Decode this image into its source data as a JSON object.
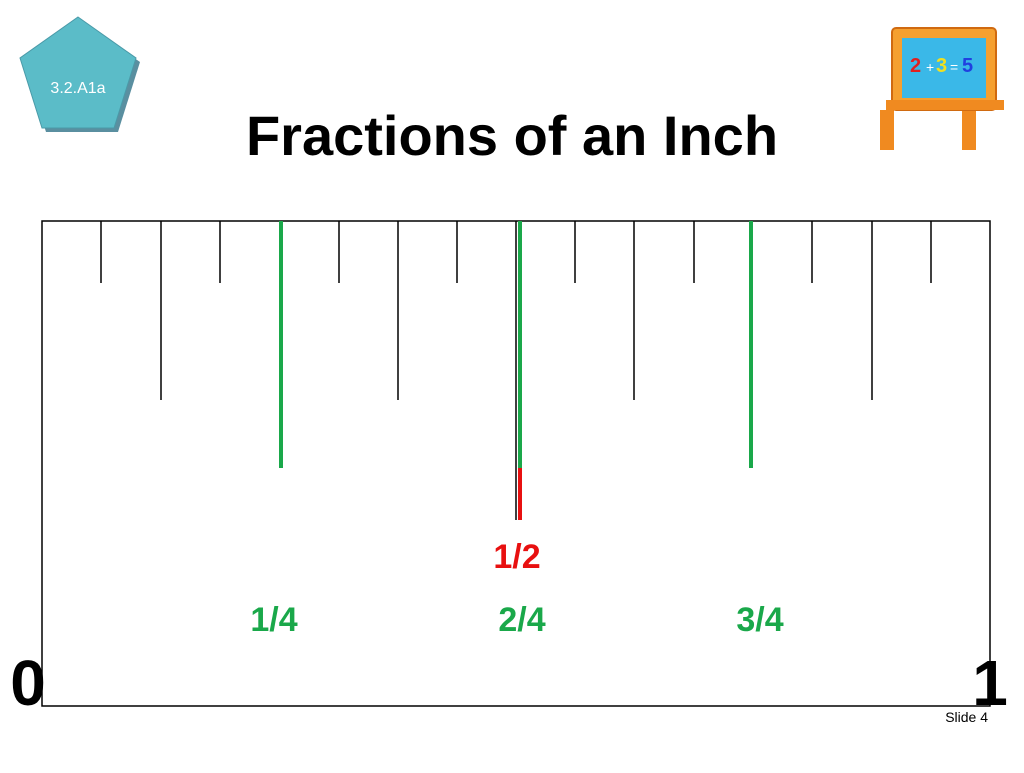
{
  "badge": "3.2.A1a",
  "title": "Fractions of an Inch",
  "labels": {
    "half": "1/2",
    "quarters": [
      "1/4",
      "2/4",
      "3/4"
    ],
    "start": "0",
    "end": "1"
  },
  "footer": "Slide 4"
}
